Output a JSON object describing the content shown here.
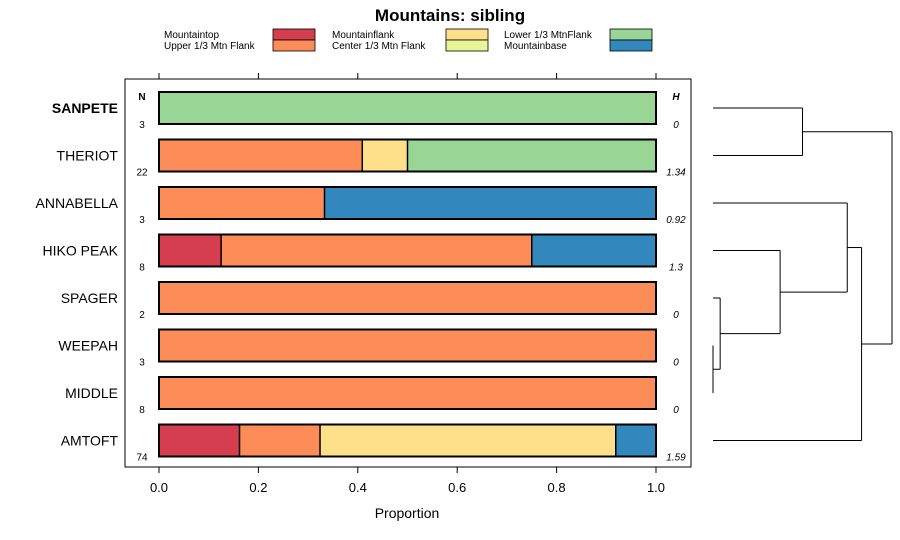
{
  "chart_data": {
    "type": "bar",
    "orientation": "horizontal",
    "stacked": true,
    "title": "Mountains: sibling",
    "xlabel": "Proportion",
    "ylabel": "",
    "xlim": [
      0,
      1
    ],
    "xticks": [
      "0.0",
      "0.2",
      "0.4",
      "0.6",
      "0.8",
      "1.0"
    ],
    "n_header": "N",
    "h_header": "H",
    "legend": {
      "placement": "top",
      "entries": [
        {
          "name": "Mountaintop",
          "color": "#d53e4f"
        },
        {
          "name": "Upper 1/3 Mtn Flank",
          "color": "#fc8d59"
        },
        {
          "name": "Mountainflank",
          "color": "#fee08b"
        },
        {
          "name": "Center 1/3 Mtn Flank",
          "color": "#e6f598"
        },
        {
          "name": "Lower 1/3 MtnFlank",
          "color": "#99d594"
        },
        {
          "name": "Mountainbase",
          "color": "#3288bd"
        }
      ]
    },
    "categories": [
      "SANPETE",
      "THERIOT",
      "ANNABELLA",
      "HIKO PEAK",
      "SPAGER",
      "WEEPAH",
      "MIDDLE",
      "AMTOFT"
    ],
    "bold_categories": [
      "SANPETE"
    ],
    "n": [
      "3",
      "22",
      "3",
      "8",
      "2",
      "3",
      "8",
      "74"
    ],
    "h": [
      "0",
      "1.34",
      "0.92",
      "1.3",
      "0",
      "0",
      "0",
      "1.59"
    ],
    "series": [
      {
        "name": "Mountaintop",
        "values": [
          0,
          0,
          0,
          0.125,
          0,
          0,
          0,
          0.162
        ]
      },
      {
        "name": "Upper 1/3 Mtn Flank",
        "values": [
          0,
          0.409,
          0.333,
          0.625,
          1,
          1,
          1,
          0.162
        ]
      },
      {
        "name": "Mountainflank",
        "values": [
          0,
          0.091,
          0,
          0,
          0,
          0,
          0,
          0.595
        ]
      },
      {
        "name": "Center 1/3 Mtn Flank",
        "values": [
          0,
          0,
          0,
          0,
          0,
          0,
          0,
          0
        ]
      },
      {
        "name": "Lower 1/3 MtnFlank",
        "values": [
          1,
          0.5,
          0,
          0,
          0,
          0,
          0,
          0
        ]
      },
      {
        "name": "Mountainbase",
        "values": [
          0,
          0,
          0.667,
          0.25,
          0,
          0,
          0,
          0.081
        ]
      }
    ],
    "dendrogram": {
      "leaves": [
        "SANPETE",
        "THERIOT",
        "ANNABELLA",
        "HIKO PEAK",
        "SPAGER",
        "WEEPAH",
        "MIDDLE",
        "AMTOFT"
      ],
      "merges": [
        {
          "left": "MIDDLE",
          "right": "WEEPAH",
          "height": 0
        },
        {
          "left": "SPAGER",
          "right": "cluster(WEEPAH,MIDDLE)",
          "height": 0.04
        },
        {
          "left": "SANPETE",
          "right": "THERIOT",
          "height": 0.5
        },
        {
          "left": "HIKO PEAK",
          "right": "cluster(SPAGER,WEEPAH,MIDDLE)",
          "height": 0.375
        },
        {
          "left": "ANNABELLA",
          "right": "cluster(HIKO PEAK,SPAGER,WEEPAH,MIDDLE)",
          "height": 0.75
        },
        {
          "left": "cluster(ANNABELLA..MIDDLE)",
          "right": "AMTOFT",
          "height": 0.83
        },
        {
          "left": "cluster(SANPETE,THERIOT)",
          "right": "cluster(ANNABELLA..AMTOFT)",
          "height": 1.0
        }
      ]
    }
  }
}
